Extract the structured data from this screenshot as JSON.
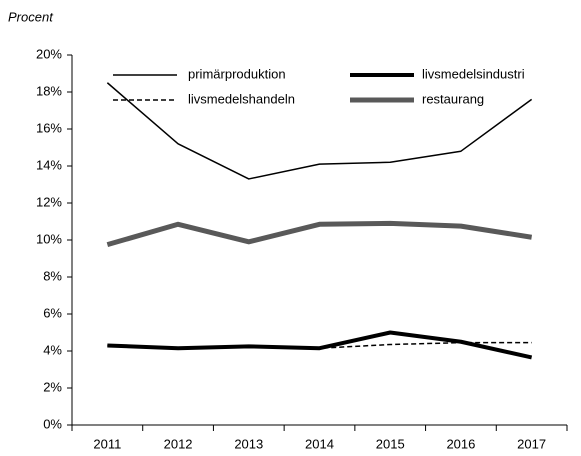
{
  "chart_data": {
    "type": "line",
    "ylabel": "Procent",
    "categories": [
      "2011",
      "2012",
      "2013",
      "2014",
      "2015",
      "2016",
      "2017"
    ],
    "series": [
      {
        "name": "primärproduktion",
        "color": "#000000",
        "width": 1.5,
        "dash": false,
        "values": [
          18.5,
          15.2,
          13.3,
          14.1,
          14.2,
          14.8,
          17.6
        ]
      },
      {
        "name": "livsmedelsindustri",
        "color": "#000000",
        "width": 4,
        "dash": false,
        "values": [
          4.3,
          4.15,
          4.25,
          4.15,
          5.0,
          4.5,
          3.65
        ]
      },
      {
        "name": "livsmedelshandeln",
        "color": "#000000",
        "width": 1.5,
        "dash": true,
        "values": [
          4.3,
          4.15,
          4.25,
          4.15,
          4.35,
          4.45,
          4.45
        ]
      },
      {
        "name": "restaurang",
        "color": "#595959",
        "width": 5,
        "dash": false,
        "values": [
          9.75,
          10.85,
          9.9,
          10.85,
          10.9,
          10.75,
          10.15
        ]
      }
    ],
    "ylim": [
      0,
      20
    ],
    "yticks": [
      {
        "value": 0,
        "label": "0%"
      },
      {
        "value": 2,
        "label": "2%"
      },
      {
        "value": 4,
        "label": "4%"
      },
      {
        "value": 6,
        "label": "6%"
      },
      {
        "value": 8,
        "label": "8%"
      },
      {
        "value": 10,
        "label": "10%"
      },
      {
        "value": 12,
        "label": "12%"
      },
      {
        "value": 14,
        "label": "14%"
      },
      {
        "value": 16,
        "label": "16%"
      },
      {
        "value": 18,
        "label": "18%"
      },
      {
        "value": 20,
        "label": "20%"
      }
    ],
    "legend": "top"
  }
}
